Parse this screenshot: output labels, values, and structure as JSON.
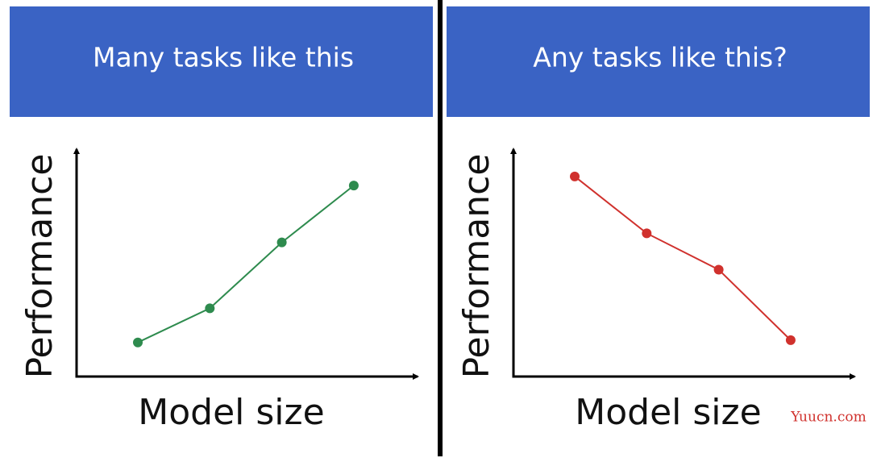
{
  "chart_data": [
    {
      "type": "line",
      "title": "Many tasks like this",
      "xlabel": "Model size",
      "ylabel": "Performance",
      "categories": [
        null,
        null,
        null,
        null
      ],
      "values": [
        15,
        30,
        59,
        84
      ],
      "color": "#2e8b4e",
      "ylim": [
        0,
        100
      ]
    },
    {
      "type": "line",
      "title": "Any tasks like this?",
      "xlabel": "Model size",
      "ylabel": "Performance",
      "categories": [
        null,
        null,
        null,
        null
      ],
      "values": [
        88,
        63,
        47,
        16
      ],
      "color": "#d0312d",
      "ylim": [
        0,
        100
      ]
    }
  ],
  "watermark": "Yuucn.com"
}
